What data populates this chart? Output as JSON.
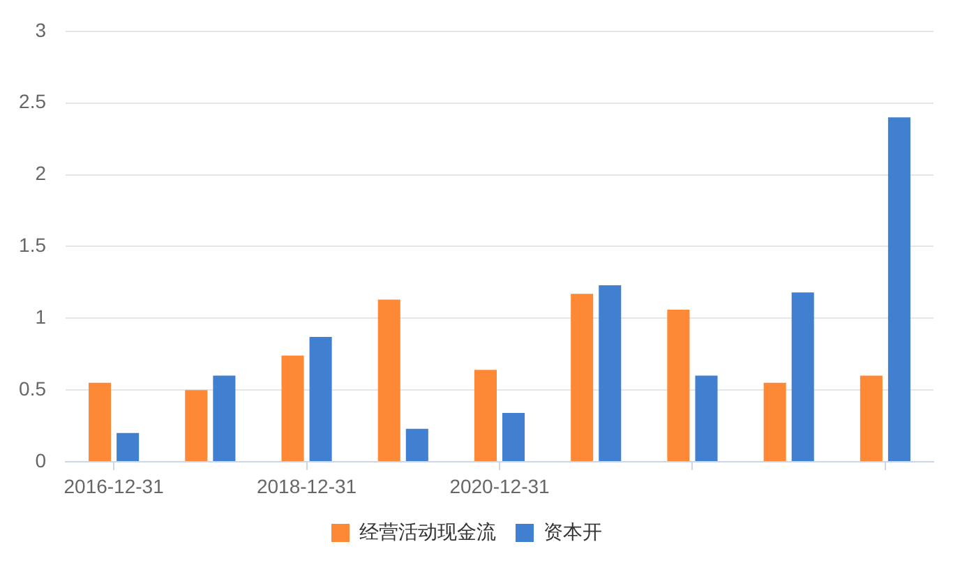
{
  "chart_data": {
    "type": "bar",
    "categories": [
      "2016-12-31",
      null,
      "2018-12-31",
      null,
      "2020-12-31",
      null,
      null,
      null,
      null
    ],
    "series": [
      {
        "name": "经营活动现金流",
        "color": "#fd8936",
        "values": [
          0.55,
          0.5,
          0.74,
          1.13,
          0.64,
          1.17,
          1.06,
          0.55,
          0.6
        ]
      },
      {
        "name": "资本开",
        "color": "#4180d0",
        "values": [
          0.2,
          0.6,
          0.87,
          0.23,
          0.34,
          1.23,
          0.6,
          1.18,
          2.4
        ]
      }
    ],
    "ylim": [
      0,
      3
    ],
    "yticks": [
      0,
      0.5,
      1,
      1.5,
      2,
      2.5,
      3
    ],
    "grid": "y",
    "legend": "bottom"
  }
}
